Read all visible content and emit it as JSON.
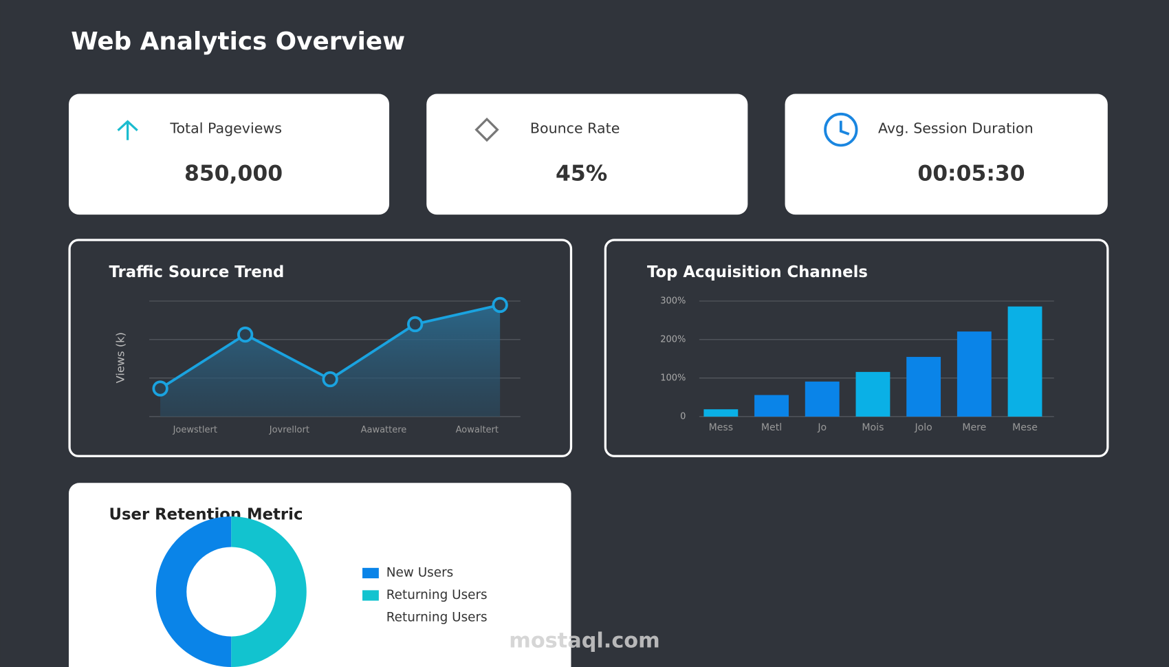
{
  "title": "Web Analytics Overview",
  "kpis": [
    {
      "label": "Total Pageviews",
      "value": "850,000"
    },
    {
      "label": "Bounce Rate",
      "value": "45%"
    },
    {
      "label": "Avg. Session Duration",
      "value": "00:05:30"
    }
  ],
  "chart_data": [
    {
      "type": "line",
      "title": "Traffic Source Trend",
      "y_label": "Views (k)",
      "x": [
        0,
        1,
        2,
        3,
        4
      ],
      "values": [
        0.73,
        2.13,
        0.97,
        2.4,
        2.9
      ],
      "xlim": [
        -0.13,
        4.24
      ],
      "xticks": [
        {
          "value": 0.41,
          "label": "Joewstlert"
        },
        {
          "value": 1.52,
          "label": "Jovrellort"
        },
        {
          "value": 2.63,
          "label": "Aawattere"
        },
        {
          "value": 3.73,
          "label": "Aowaltert"
        }
      ],
      "ylim": [
        0,
        3
      ],
      "yticks": [
        0,
        1,
        2,
        3
      ],
      "grid": true,
      "color": "#1aa3e0"
    },
    {
      "type": "bar",
      "title": "Top Acquisition Channels",
      "categories": [
        "Mess",
        "Metl",
        "Jo",
        "Mois",
        "Jolo",
        "Mere",
        "Mese"
      ],
      "values": [
        19,
        56,
        91,
        116,
        155,
        221,
        286
      ],
      "colors": [
        "#0ab0e6",
        "#0a84e8",
        "#0a84e8",
        "#0ab0e6",
        "#0a84e8",
        "#0a84e8",
        "#0ab0e6"
      ],
      "ylim": [
        0,
        300
      ],
      "yticks": [
        0,
        {
          "value": 100,
          "label": "100%"
        },
        {
          "value": 200,
          "label": "200%"
        },
        {
          "value": 300,
          "label": "300%"
        }
      ],
      "grid": true
    },
    {
      "type": "pie",
      "title": "User Retention Metric",
      "labels": [
        "New Users",
        "Returning Users",
        "Returning Users"
      ],
      "values": [
        50,
        50,
        null
      ],
      "colors": [
        "#0a84e8",
        "#12c3cf",
        null
      ]
    }
  ],
  "watermark": "mostaql.com"
}
